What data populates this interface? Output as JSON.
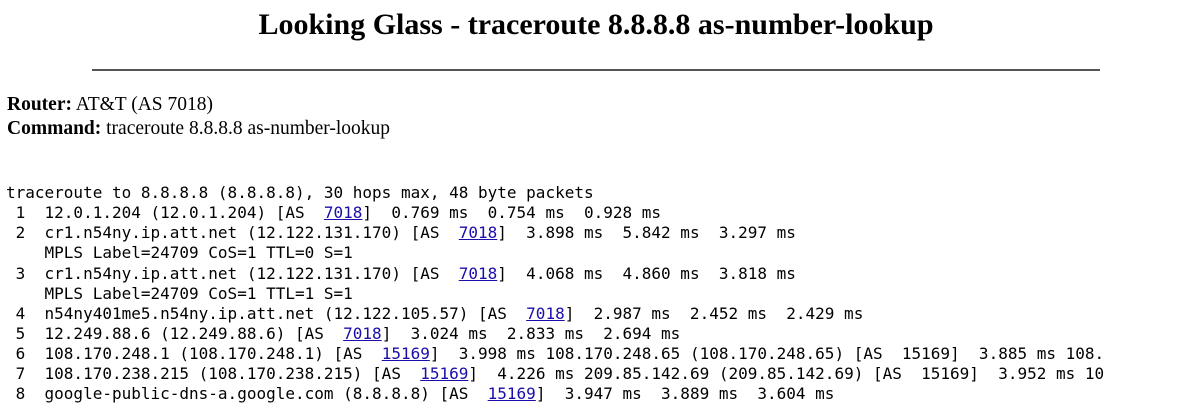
{
  "title": "Looking Glass - traceroute 8.8.8.8 as-number-lookup",
  "router": {
    "label": "Router:",
    "value": "AT&T (AS 7018)"
  },
  "command": {
    "label": "Command:",
    "value": "traceroute 8.8.8.8 as-number-lookup"
  },
  "colors": {
    "link": "#1a0dab",
    "rule": "#555555",
    "text": "#000000"
  },
  "output": {
    "header": "traceroute to 8.8.8.8 (8.8.8.8), 30 hops max, 48 byte packets",
    "lines": [
      {
        "before": " 1  12.0.1.204 (12.0.1.204) [AS  ",
        "as": "7018",
        "after": "]  0.769 ms  0.754 ms  0.928 ms",
        "linked": true
      },
      {
        "before": " 2  cr1.n54ny.ip.att.net (12.122.131.170) [AS  ",
        "as": "7018",
        "after": "]  3.898 ms  5.842 ms  3.297 ms",
        "linked": true
      },
      {
        "before": "    MPLS Label=24709 CoS=1 TTL=0 S=1",
        "as": "",
        "after": "",
        "linked": false
      },
      {
        "before": " 3  cr1.n54ny.ip.att.net (12.122.131.170) [AS  ",
        "as": "7018",
        "after": "]  4.068 ms  4.860 ms  3.818 ms",
        "linked": true
      },
      {
        "before": "    MPLS Label=24709 CoS=1 TTL=1 S=1",
        "as": "",
        "after": "",
        "linked": false
      },
      {
        "before": " 4  n54ny401me5.n54ny.ip.att.net (12.122.105.57) [AS  ",
        "as": "7018",
        "after": "]  2.987 ms  2.452 ms  2.429 ms",
        "linked": true
      },
      {
        "before": " 5  12.249.88.6 (12.249.88.6) [AS  ",
        "as": "7018",
        "after": "]  3.024 ms  2.833 ms  2.694 ms",
        "linked": true
      },
      {
        "before": " 6  108.170.248.1 (108.170.248.1) [AS  ",
        "as": "15169",
        "after": "]  3.998 ms 108.170.248.65 (108.170.248.65) [AS  15169]  3.885 ms 108.",
        "linked": true
      },
      {
        "before": " 7  108.170.238.215 (108.170.238.215) [AS  ",
        "as": "15169",
        "after": "]  4.226 ms 209.85.142.69 (209.85.142.69) [AS  15169]  3.952 ms 10",
        "linked": true
      },
      {
        "before": " 8  google-public-dns-a.google.com (8.8.8.8) [AS  ",
        "as": "15169",
        "after": "]  3.947 ms  3.889 ms  3.604 ms",
        "linked": true
      }
    ]
  }
}
